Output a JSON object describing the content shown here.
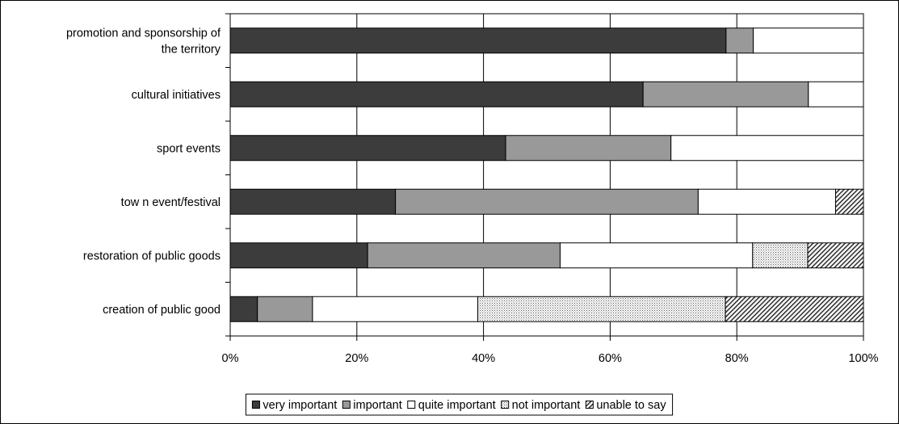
{
  "chart_data": {
    "type": "bar",
    "orientation": "horizontal",
    "stacked": true,
    "percent_stacked": true,
    "categories": [
      [
        "promotion and sponsorship of",
        "the territory"
      ],
      [
        "cultural initiatives"
      ],
      [
        "sport events"
      ],
      [
        "tow n event/festival"
      ],
      [
        "restoration of public goods"
      ],
      [
        "creation of public good"
      ]
    ],
    "series": [
      {
        "name": "very important",
        "values": [
          78.3,
          65.2,
          43.5,
          26.1,
          21.7,
          4.3
        ]
      },
      {
        "name": "important",
        "values": [
          4.3,
          26.1,
          26.1,
          47.8,
          30.4,
          8.7
        ]
      },
      {
        "name": "quite important",
        "values": [
          17.4,
          8.7,
          30.4,
          21.7,
          30.4,
          26.1
        ]
      },
      {
        "name": "not important",
        "values": [
          0,
          0,
          0,
          0,
          8.7,
          39.1
        ]
      },
      {
        "name": "unable to say",
        "values": [
          0,
          0,
          0,
          4.4,
          8.8,
          21.8
        ]
      }
    ],
    "series_colors": [
      "#3c3c3c",
      "#999999",
      "#ffffff",
      "pattern-dots",
      "pattern-hatch"
    ],
    "xlim": [
      0,
      100
    ],
    "xticks": [
      0,
      20,
      40,
      60,
      80,
      100
    ],
    "xtick_labels": [
      "0%",
      "20%",
      "40%",
      "60%",
      "80%",
      "100%"
    ],
    "xlabel": "",
    "ylabel": "",
    "title": "",
    "grid": true,
    "legend_position": "bottom"
  }
}
